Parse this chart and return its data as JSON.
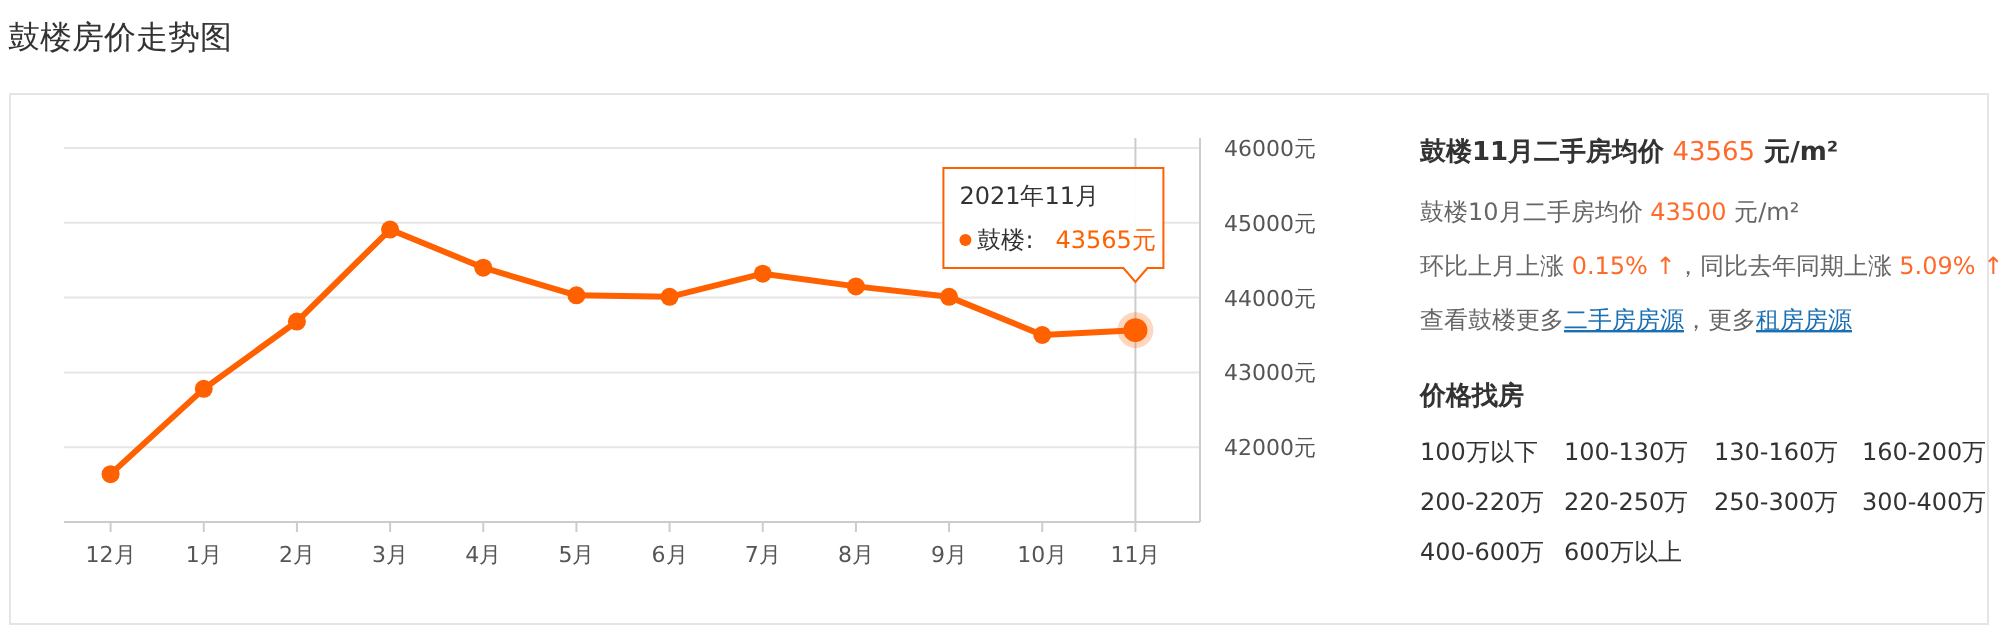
{
  "chart_data": [
    {
      "type": "line",
      "title": "鼓楼房价走势图",
      "categories": [
        "12月",
        "1月",
        "2月",
        "3月",
        "4月",
        "5月",
        "6月",
        "7月",
        "8月",
        "9月",
        "10月",
        "11月"
      ],
      "series": [
        {
          "name": "鼓楼:",
          "color": "#ff6000",
          "values": [
            41640,
            42780,
            43680,
            44910,
            44400,
            44030,
            44010,
            44320,
            44150,
            44010,
            43500,
            43565
          ],
          "value_labels": [
            null,
            null,
            null,
            null,
            null,
            null,
            null,
            null,
            null,
            null,
            null,
            "43565元"
          ]
        }
      ],
      "ylim": [
        41000,
        46000
      ],
      "yticks": [
        {
          "value": 42000,
          "label": "42000元"
        },
        {
          "value": 43000,
          "label": "43000元"
        },
        {
          "value": 44000,
          "label": "44000元"
        },
        {
          "value": 45000,
          "label": "45000元"
        },
        {
          "value": 46000,
          "label": "46000元"
        }
      ],
      "grid": "y",
      "marker": "circle",
      "line_style": "solid",
      "ref_lines": [
        {
          "axis": "x",
          "value": "11月",
          "color": "#cccccc"
        }
      ],
      "annotations": [
        "2021年11月"
      ]
    },
    {
      "type": "other",
      "title": "鼓楼11月二手房均价",
      "subtitle": "价格找房",
      "annotations": [
        "43565",
        "元/m²",
        "鼓楼10月二手房均价",
        "43500",
        "元/m²",
        "环比上月上涨",
        "0.15% ↑",
        "，同比去年同期上涨",
        "5.09% ↑",
        "查看鼓楼更多",
        "二手房房源",
        "，更多",
        "租房房源",
        "100万以下",
        "100-130万",
        "130-160万",
        "160-200万",
        "200-220万",
        "220-250万",
        "250-300万",
        "300-400万",
        "400-600万",
        "600万以上"
      ]
    }
  ]
}
